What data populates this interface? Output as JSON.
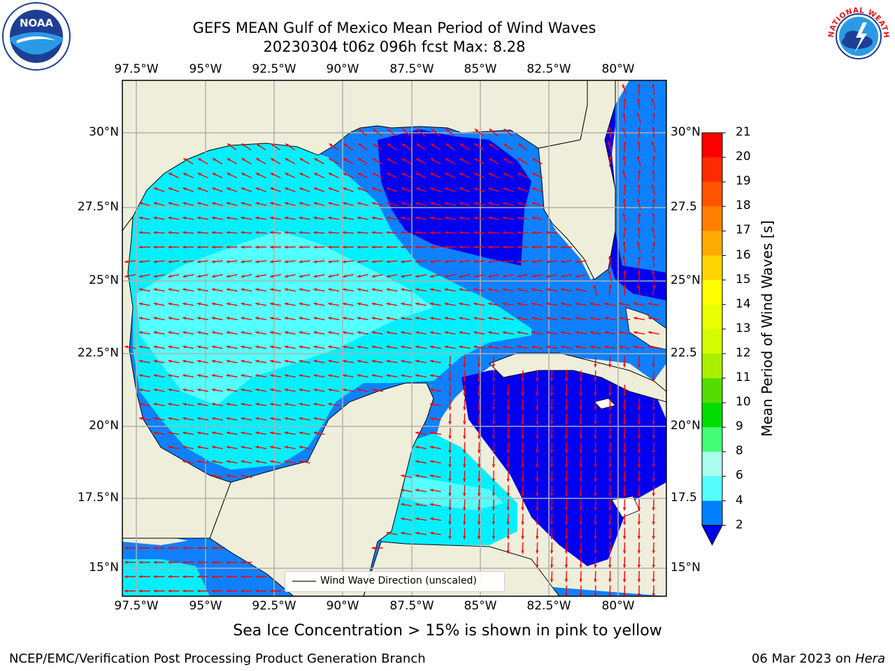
{
  "title": {
    "line1": "GEFS MEAN Gulf of Mexico Mean Period of Wind Waves",
    "line2": "20230304 t06z 096h fcst   Max: 8.28"
  },
  "map": {
    "lon_labels": [
      "97.5°W",
      "95°W",
      "92.5°W",
      "90°W",
      "87.5°W",
      "85°W",
      "82.5°W",
      "80°W"
    ],
    "lat_labels_left": [
      "30°N",
      "27.5°N",
      "25°N",
      "22.5°N",
      "20°N",
      "17.5°N",
      "15°N"
    ],
    "lat_labels_right": [
      "30°N",
      "27.5",
      "25°N",
      "22.5",
      "20°N",
      "17.5",
      "15°N"
    ],
    "land_color": "#efeedb",
    "grid_color": "#b0b0b0",
    "arrow_color": "#ff0000",
    "legend_label": "Wind Wave Direction (unscaled)"
  },
  "colorbar": {
    "title": "Mean Period of Wind Waves [s]",
    "ticks": [
      "21",
      "20",
      "19",
      "18",
      "17",
      "16",
      "15",
      "14",
      "13",
      "12",
      "11",
      "10",
      "9",
      "8",
      "6",
      "4",
      "2"
    ],
    "colors": [
      "#ff0000",
      "#ff2a00",
      "#ff5500",
      "#ff8000",
      "#ffaa00",
      "#ffd400",
      "#ffff00",
      "#eaff00",
      "#d4ff00",
      "#aaf000",
      "#55dd00",
      "#00dd00",
      "#44ff77",
      "#aaffee",
      "#55ffff",
      "#00f0ff",
      "#0080ff"
    ],
    "under_color": "#0000ee"
  },
  "colors": {
    "deep_blue": "#0000ee",
    "mid_blue": "#0f80ff",
    "cyan": "#00f0ff",
    "light_cyan": "#55ffff"
  },
  "logos": {
    "noaa_text": "NOAA",
    "nws_text": "NATIONAL WEATHER SERVICE"
  },
  "note": "Sea Ice Concentration > 15% is shown in pink to yellow",
  "footer": {
    "left": "NCEP/EMC/Verification Post Processing Product Generation Branch",
    "right_date": "06 Mar 2023 on ",
    "right_host": "Hera"
  }
}
